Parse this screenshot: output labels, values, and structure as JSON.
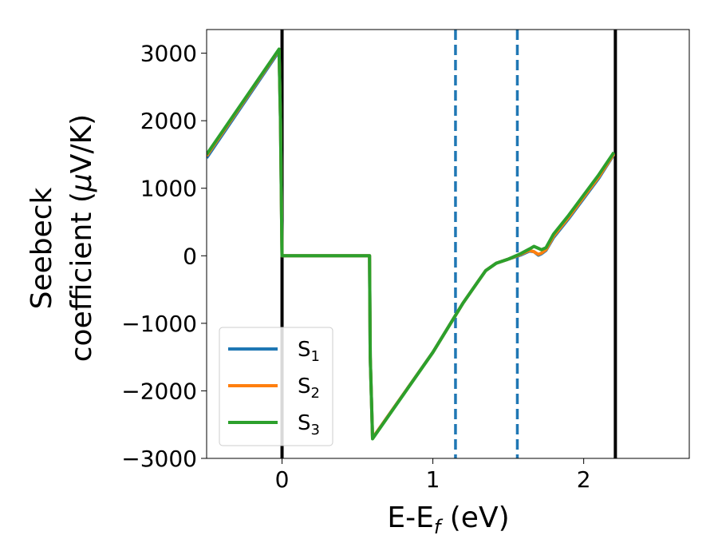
{
  "chart_data": {
    "type": "line",
    "xlabel": "E-E$_f$ (eV)",
    "xlabel_main": "E-E",
    "xlabel_sub": "f",
    "xlabel_tail": " (eV)",
    "ylabel_line1": "Seebeck",
    "ylabel_line2": "coefficient  (",
    "ylabel_mu": "μ",
    "ylabel_unit": "V/K)",
    "xlim": [
      -0.5,
      2.7
    ],
    "ylim": [
      -3000,
      3350
    ],
    "x_ticks": [
      0,
      1,
      2
    ],
    "x_tick_labels": [
      "0",
      "1",
      "2"
    ],
    "y_ticks": [
      -3000,
      -2000,
      -1000,
      0,
      1000,
      2000,
      3000
    ],
    "y_tick_labels": [
      "−3000",
      "−2000",
      "−1000",
      "0",
      "1000",
      "2000",
      "3000"
    ],
    "vlines": [
      {
        "x": 0.0,
        "style": "solid",
        "color": "#000000"
      },
      {
        "x": 1.15,
        "style": "dashed",
        "color": "#1f77b4"
      },
      {
        "x": 1.56,
        "style": "dashed",
        "color": "#1f77b4"
      },
      {
        "x": 2.21,
        "style": "solid",
        "color": "#000000"
      }
    ],
    "series": [
      {
        "name": "S",
        "sub": "1",
        "color": "#1f77b4",
        "x": [
          -0.5,
          -0.02,
          -0.01,
          0.0,
          0.58,
          0.585,
          0.6,
          1.0,
          1.2,
          1.3,
          1.35,
          1.42,
          1.5,
          1.58,
          1.64,
          1.67,
          1.7,
          1.72,
          1.75,
          1.8,
          1.9,
          2.0,
          2.1,
          2.2
        ],
        "y": [
          1450,
          3030,
          2000,
          0,
          0,
          -1500,
          -2700,
          -1430,
          -700,
          -380,
          -220,
          -110,
          -50,
          10,
          70,
          60,
          10,
          30,
          80,
          270,
          550,
          850,
          1150,
          1500
        ]
      },
      {
        "name": "S",
        "sub": "2",
        "color": "#ff7f0e",
        "x": [
          -0.5,
          -0.02,
          -0.01,
          0.0,
          0.58,
          0.585,
          0.6,
          1.0,
          1.2,
          1.3,
          1.35,
          1.42,
          1.5,
          1.58,
          1.64,
          1.67,
          1.7,
          1.72,
          1.75,
          1.8,
          1.9,
          2.0,
          2.1,
          2.2
        ],
        "y": [
          1480,
          3050,
          2000,
          0,
          0,
          -1500,
          -2700,
          -1430,
          -700,
          -380,
          -220,
          -110,
          -50,
          20,
          80,
          60,
          20,
          40,
          90,
          290,
          570,
          870,
          1170,
          1510
        ]
      },
      {
        "name": "S",
        "sub": "3",
        "color": "#2ca02c",
        "x": [
          -0.5,
          -0.02,
          -0.01,
          0.0,
          0.58,
          0.585,
          0.6,
          1.0,
          1.2,
          1.3,
          1.35,
          1.42,
          1.5,
          1.58,
          1.64,
          1.67,
          1.7,
          1.72,
          1.75,
          1.8,
          1.9,
          2.0,
          2.1,
          2.2
        ],
        "y": [
          1500,
          3060,
          2000,
          0,
          0,
          -1500,
          -2710,
          -1430,
          -700,
          -380,
          -220,
          -110,
          -50,
          30,
          100,
          140,
          110,
          90,
          120,
          320,
          600,
          900,
          1200,
          1530
        ]
      }
    ],
    "legend_position": "lower-left",
    "grid": false
  }
}
